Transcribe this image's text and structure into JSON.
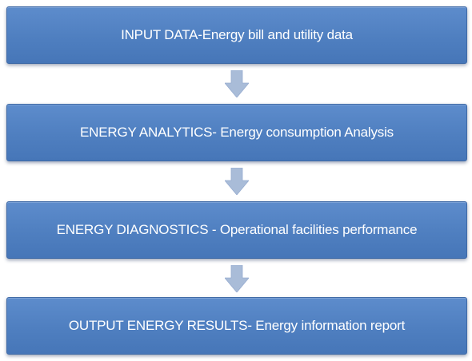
{
  "flow": {
    "steps": [
      {
        "label": "INPUT DATA-Energy bill and utility data"
      },
      {
        "label": "ENERGY ANALYTICS- Energy consumption  Analysis"
      },
      {
        "label": "ENERGY DIAGNOSTICS - Operational facilities performance"
      },
      {
        "label": "OUTPUT ENERGY RESULTS- Energy information report"
      }
    ],
    "colors": {
      "box_fill": "#4f7fc0",
      "box_border": "#3f6aa6",
      "text": "#ffffff",
      "arrow_fill": "#a9bcd8"
    },
    "connector_icon": "down-arrow-icon"
  }
}
